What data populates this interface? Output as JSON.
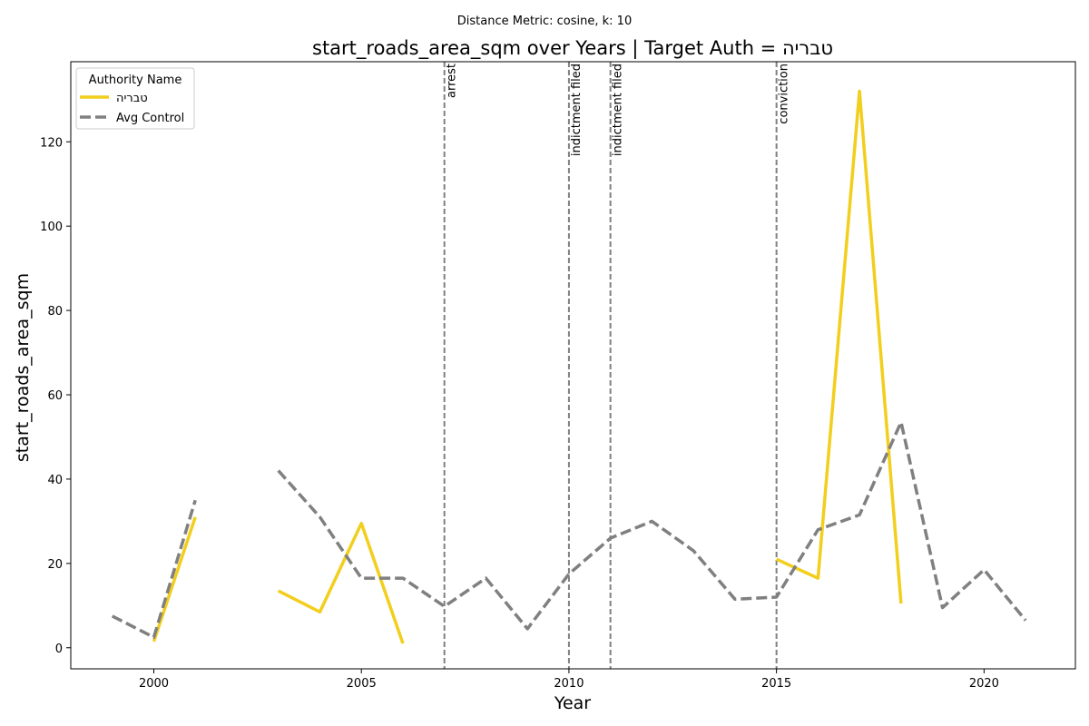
{
  "chart_data": {
    "type": "line",
    "suptitle": "Distance Metric: cosine, k: 10",
    "title": "start_roads_area_sqm over Years | Target Auth = טבריה",
    "xlabel": "Year",
    "ylabel": "start_roads_area_sqm",
    "xlim": [
      1998,
      2022.2
    ],
    "ylim": [
      -5,
      139
    ],
    "x_ticks": [
      2000,
      2005,
      2010,
      2015,
      2020
    ],
    "y_ticks": [
      0,
      20,
      40,
      60,
      80,
      100,
      120
    ],
    "grid": false,
    "legend": {
      "title": "Authority Name",
      "placement": "top-left",
      "entries": [
        "טבריה",
        "Avg Control"
      ]
    },
    "series": [
      {
        "name": "טבריה",
        "color": "#f2ce1d",
        "style": "solid",
        "points": [
          [
            2000,
            1.5
          ],
          [
            2001,
            31
          ],
          [
            2002,
            null
          ],
          [
            2003,
            13.5
          ],
          [
            2004,
            8.5
          ],
          [
            2005,
            29.5
          ],
          [
            2006,
            1
          ],
          [
            2007,
            null
          ],
          [
            2014,
            null
          ],
          [
            2015,
            21
          ],
          [
            2016,
            16.5
          ],
          [
            2017,
            132
          ],
          [
            2018,
            10.5
          ]
        ]
      },
      {
        "name": "Avg Control",
        "color": "#808080",
        "style": "dashed",
        "points": [
          [
            1999,
            7.5
          ],
          [
            2000,
            2.5
          ],
          [
            2001,
            35
          ],
          [
            2002,
            null
          ],
          [
            2003,
            42
          ],
          [
            2004,
            31
          ],
          [
            2005,
            16.5
          ],
          [
            2006,
            16.5
          ],
          [
            2007,
            9.8
          ],
          [
            2008,
            16.5
          ],
          [
            2009,
            4.5
          ],
          [
            2010,
            17.5
          ],
          [
            2011,
            26
          ],
          [
            2012,
            30
          ],
          [
            2013,
            23
          ],
          [
            2014,
            11.5
          ],
          [
            2015,
            12
          ],
          [
            2016,
            28
          ],
          [
            2017,
            31.5
          ],
          [
            2018,
            53.5
          ],
          [
            2019,
            9.5
          ],
          [
            2020,
            18.5
          ],
          [
            2021,
            6.5
          ]
        ]
      }
    ],
    "events": [
      {
        "year": 2007,
        "label": "arrest"
      },
      {
        "year": 2010,
        "label": "indictment filed"
      },
      {
        "year": 2011,
        "label": "indictment filed"
      },
      {
        "year": 2015,
        "label": "conviction"
      }
    ]
  }
}
